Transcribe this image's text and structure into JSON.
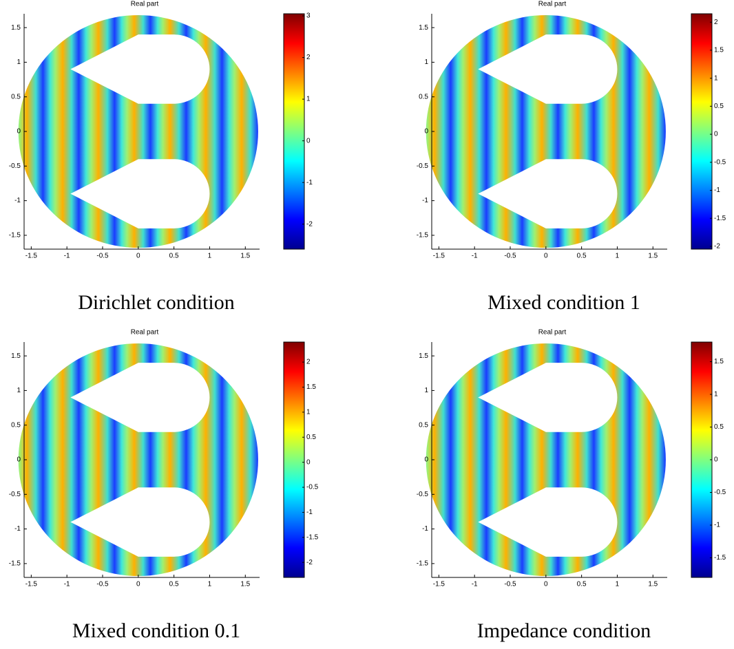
{
  "chart_data": [
    {
      "type": "heatmap",
      "title": "Real part",
      "caption": "Dirichlet condition",
      "xlim": [
        -1.6,
        1.7
      ],
      "ylim": [
        -1.7,
        1.7
      ],
      "xticks": [
        -1.5,
        -1,
        -0.5,
        0,
        0.5,
        1,
        1.5
      ],
      "yticks": [
        -1.5,
        -1,
        -0.5,
        0,
        0.5,
        1,
        1.5
      ],
      "clim": [
        -2.6,
        3.05
      ],
      "cticks": [
        -2,
        -1,
        0,
        1,
        2,
        3
      ]
    },
    {
      "type": "heatmap",
      "title": "Real part",
      "caption": "Mixed condition 1",
      "xlim": [
        -1.6,
        1.7
      ],
      "ylim": [
        -1.7,
        1.7
      ],
      "xticks": [
        -1.5,
        -1,
        -0.5,
        0,
        0.5,
        1,
        1.5
      ],
      "yticks": [
        -1.5,
        -1,
        -0.5,
        0,
        0.5,
        1,
        1.5
      ],
      "clim": [
        -2.05,
        2.15
      ],
      "cticks": [
        -2,
        -1.5,
        -1,
        -0.5,
        0,
        0.5,
        1,
        1.5,
        2
      ]
    },
    {
      "type": "heatmap",
      "title": "Real part",
      "caption": "Mixed condition 0.1",
      "xlim": [
        -1.6,
        1.7
      ],
      "ylim": [
        -1.7,
        1.7
      ],
      "xticks": [
        -1.5,
        -1,
        -0.5,
        0,
        0.5,
        1,
        1.5
      ],
      "yticks": [
        -1.5,
        -1,
        -0.5,
        0,
        0.5,
        1,
        1.5
      ],
      "clim": [
        -2.3,
        2.4
      ],
      "cticks": [
        -2,
        -1.5,
        -1,
        -0.5,
        0,
        0.5,
        1,
        1.5,
        2
      ]
    },
    {
      "type": "heatmap",
      "title": "Real part",
      "caption": "Impedance condition",
      "xlim": [
        -1.6,
        1.7
      ],
      "ylim": [
        -1.7,
        1.7
      ],
      "xticks": [
        -1.5,
        -1,
        -0.5,
        0,
        0.5,
        1,
        1.5
      ],
      "yticks": [
        -1.5,
        -1,
        -0.5,
        0,
        0.5,
        1,
        1.5
      ],
      "clim": [
        -1.8,
        1.8
      ],
      "cticks": [
        -1.5,
        -1,
        -0.5,
        0,
        0.5,
        1,
        1.5
      ]
    }
  ]
}
